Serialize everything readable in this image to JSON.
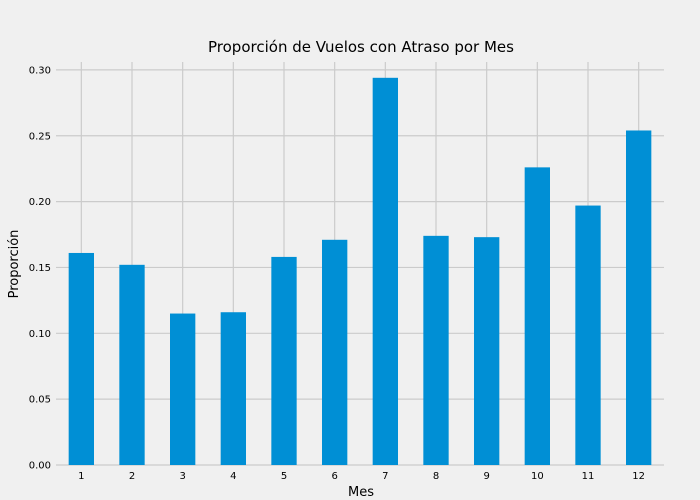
{
  "chart_data": {
    "type": "bar",
    "title": "Proporción de Vuelos con Atraso por Mes",
    "xlabel": "Mes",
    "ylabel": "Proporción",
    "categories": [
      "1",
      "2",
      "3",
      "4",
      "5",
      "6",
      "7",
      "8",
      "9",
      "10",
      "11",
      "12"
    ],
    "values": [
      0.161,
      0.152,
      0.115,
      0.116,
      0.158,
      0.171,
      0.294,
      0.174,
      0.173,
      0.226,
      0.197,
      0.254
    ],
    "ylim": [
      0,
      0.306
    ],
    "yticks": [
      0.0,
      0.05,
      0.1,
      0.15,
      0.2,
      0.25,
      0.3
    ],
    "ytick_labels": [
      "0.00",
      "0.05",
      "0.10",
      "0.15",
      "0.20",
      "0.25",
      "0.30"
    ],
    "grid": true,
    "legend": "none",
    "colors": {
      "bar": "#008fd5",
      "background": "#f0f0f0",
      "grid": "#cbcbcb"
    }
  }
}
